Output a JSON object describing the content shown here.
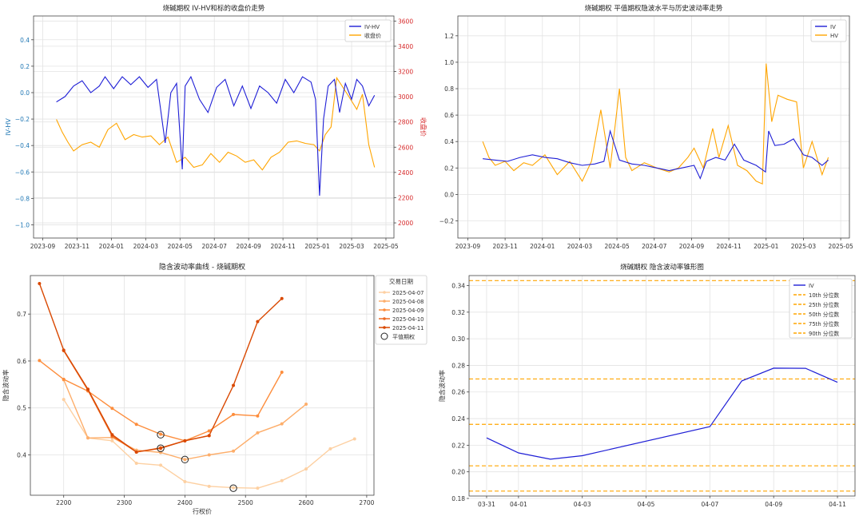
{
  "chart_data": [
    {
      "type": "line",
      "title": "烧碱期权 IV-HV和标的收盘价走势",
      "ylabel": "IV-HV",
      "y2label": "收盘价",
      "x_ticks": [
        "2023-09",
        "2023-11",
        "2024-01",
        "2024-03",
        "2024-05",
        "2024-07",
        "2024-09",
        "2024-11",
        "2025-01",
        "2025-03",
        "2025-05"
      ],
      "ylim": [
        -1.1,
        0.58
      ],
      "y_ticks": [
        -1.0,
        -0.8,
        -0.6,
        -0.4,
        -0.2,
        0.0,
        0.2,
        0.4
      ],
      "y_tick_labels": [
        "−1.0",
        "−0.8",
        "−0.6",
        "−0.4",
        "−0.2",
        "0.0",
        "0.2",
        "0.4"
      ],
      "y2lim": [
        1880,
        3640
      ],
      "y2_ticks": [
        2000,
        2200,
        2400,
        2600,
        2800,
        3000,
        3200,
        3400,
        3600
      ],
      "legend_position": "top-right",
      "colors": {
        "iv_hv": "#1f1fd6",
        "close": "#ffa500",
        "left_axis": "#1f77b4",
        "right_axis": "#d62728"
      },
      "series": [
        {
          "name": "IV-HV",
          "axis": "left",
          "color": "#1f1fd6",
          "x": [
            "2023-09-25",
            "2023-10-10",
            "2023-10-25",
            "2023-11-10",
            "2023-11-25",
            "2023-12-10",
            "2023-12-20",
            "2024-01-05",
            "2024-01-20",
            "2024-02-05",
            "2024-02-20",
            "2024-03-05",
            "2024-03-20",
            "2024-04-05",
            "2024-04-15",
            "2024-04-25",
            "2024-05-05",
            "2024-05-10",
            "2024-05-20",
            "2024-06-05",
            "2024-06-20",
            "2024-07-05",
            "2024-07-20",
            "2024-08-05",
            "2024-08-20",
            "2024-09-05",
            "2024-09-20",
            "2024-10-05",
            "2024-10-20",
            "2024-11-05",
            "2024-11-20",
            "2024-12-05",
            "2024-12-20",
            "2024-12-28",
            "2025-01-05",
            "2025-01-12",
            "2025-01-20",
            "2025-02-01",
            "2025-02-10",
            "2025-02-20",
            "2025-03-01",
            "2025-03-10",
            "2025-03-20",
            "2025-04-01",
            "2025-04-11"
          ],
          "values": [
            -0.07,
            -0.03,
            0.05,
            0.09,
            0.0,
            0.05,
            0.12,
            0.03,
            0.12,
            0.06,
            0.12,
            0.04,
            0.1,
            -0.38,
            0.0,
            0.07,
            -0.58,
            0.05,
            0.12,
            -0.05,
            -0.15,
            0.04,
            0.1,
            -0.1,
            0.05,
            -0.12,
            0.05,
            0.0,
            -0.08,
            0.1,
            0.0,
            0.12,
            0.08,
            -0.05,
            -0.78,
            -0.2,
            0.05,
            0.1,
            -0.15,
            0.07,
            -0.05,
            0.1,
            0.05,
            -0.1,
            -0.02
          ]
        },
        {
          "name": "收盘价",
          "axis": "right",
          "color": "#ffa500",
          "x": [
            "2023-09-25",
            "2023-10-05",
            "2023-10-15",
            "2023-10-25",
            "2023-11-10",
            "2023-11-25",
            "2023-12-10",
            "2023-12-25",
            "2024-01-10",
            "2024-01-25",
            "2024-02-10",
            "2024-02-25",
            "2024-03-10",
            "2024-03-25",
            "2024-04-10",
            "2024-04-25",
            "2024-05-10",
            "2024-05-25",
            "2024-06-10",
            "2024-06-25",
            "2024-07-10",
            "2024-07-25",
            "2024-08-10",
            "2024-08-25",
            "2024-09-10",
            "2024-09-25",
            "2024-10-10",
            "2024-10-25",
            "2024-11-10",
            "2024-11-25",
            "2024-12-10",
            "2024-12-25",
            "2025-01-05",
            "2025-01-15",
            "2025-01-25",
            "2025-02-05",
            "2025-02-15",
            "2025-02-25",
            "2025-03-10",
            "2025-03-20",
            "2025-04-01",
            "2025-04-11"
          ],
          "values": [
            2820,
            2720,
            2640,
            2570,
            2620,
            2640,
            2600,
            2740,
            2790,
            2660,
            2700,
            2680,
            2690,
            2620,
            2680,
            2480,
            2520,
            2440,
            2460,
            2550,
            2480,
            2560,
            2530,
            2480,
            2500,
            2420,
            2520,
            2560,
            2640,
            2650,
            2630,
            2620,
            2570,
            2700,
            2760,
            3150,
            3080,
            3010,
            2900,
            3020,
            2620,
            2440
          ]
        }
      ]
    },
    {
      "type": "line",
      "title": "烧碱期权 平值期权隐波水平与历史波动率走势",
      "x_ticks": [
        "2023-09",
        "2023-11",
        "2024-01",
        "2024-03",
        "2024-05",
        "2024-07",
        "2024-09",
        "2024-11",
        "2025-01",
        "2025-03",
        "2025-05"
      ],
      "ylim": [
        -0.33,
        1.35
      ],
      "y_ticks": [
        -0.2,
        0.0,
        0.2,
        0.4,
        0.6,
        0.8,
        1.0,
        1.2
      ],
      "y_tick_labels": [
        "−0.2",
        "0.0",
        "0.2",
        "0.4",
        "0.6",
        "0.8",
        "1.0",
        "1.2"
      ],
      "legend_position": "top-right",
      "series": [
        {
          "name": "IV",
          "color": "#1f1fd6",
          "x": [
            "2023-09-25",
            "2023-10-15",
            "2023-11-05",
            "2023-11-25",
            "2023-12-15",
            "2024-01-05",
            "2024-01-25",
            "2024-02-15",
            "2024-03-05",
            "2024-03-25",
            "2024-04-10",
            "2024-04-20",
            "2024-05-05",
            "2024-05-25",
            "2024-06-15",
            "2024-07-05",
            "2024-07-25",
            "2024-08-15",
            "2024-09-05",
            "2024-09-15",
            "2024-09-25",
            "2024-10-10",
            "2024-10-25",
            "2024-11-10",
            "2024-11-25",
            "2024-12-15",
            "2024-12-30",
            "2025-01-05",
            "2025-01-15",
            "2025-01-30",
            "2025-02-15",
            "2025-03-01",
            "2025-03-15",
            "2025-04-01",
            "2025-04-11"
          ],
          "values": [
            0.27,
            0.26,
            0.25,
            0.28,
            0.3,
            0.28,
            0.27,
            0.24,
            0.22,
            0.23,
            0.25,
            0.48,
            0.26,
            0.23,
            0.22,
            0.2,
            0.18,
            0.2,
            0.22,
            0.12,
            0.25,
            0.28,
            0.26,
            0.38,
            0.26,
            0.22,
            0.17,
            0.48,
            0.37,
            0.38,
            0.42,
            0.3,
            0.28,
            0.22,
            0.26
          ]
        },
        {
          "name": "HV",
          "color": "#ffa500",
          "x": [
            "2023-09-25",
            "2023-10-05",
            "2023-10-15",
            "2023-11-01",
            "2023-11-15",
            "2023-12-01",
            "2023-12-15",
            "2024-01-05",
            "2024-01-25",
            "2024-02-15",
            "2024-03-05",
            "2024-03-20",
            "2024-04-05",
            "2024-04-20",
            "2024-05-05",
            "2024-05-15",
            "2024-05-25",
            "2024-06-15",
            "2024-07-05",
            "2024-07-25",
            "2024-08-10",
            "2024-08-25",
            "2024-09-05",
            "2024-09-20",
            "2024-10-05",
            "2024-10-15",
            "2024-10-30",
            "2024-11-15",
            "2024-11-30",
            "2024-12-15",
            "2024-12-25",
            "2025-01-01",
            "2025-01-10",
            "2025-01-20",
            "2025-02-05",
            "2025-02-20",
            "2025-03-01",
            "2025-03-15",
            "2025-04-01",
            "2025-04-11"
          ],
          "values": [
            0.4,
            0.28,
            0.22,
            0.25,
            0.18,
            0.24,
            0.22,
            0.3,
            0.15,
            0.25,
            0.1,
            0.25,
            0.64,
            0.2,
            0.8,
            0.28,
            0.18,
            0.24,
            0.2,
            0.17,
            0.2,
            0.28,
            0.35,
            0.2,
            0.5,
            0.28,
            0.52,
            0.22,
            0.18,
            0.1,
            0.08,
            0.99,
            0.55,
            0.75,
            0.72,
            0.7,
            0.2,
            0.4,
            0.15,
            0.28
          ]
        }
      ]
    },
    {
      "type": "line",
      "title": "隐含波动率曲线 - 烧碱期权",
      "xlabel": "行权价",
      "ylabel": "隐含波动率",
      "xlim": [
        2145,
        2712
      ],
      "x_ticks": [
        2200,
        2300,
        2400,
        2500,
        2600,
        2700
      ],
      "ylim": [
        0.314,
        0.782
      ],
      "y_ticks": [
        0.4,
        0.5,
        0.6,
        0.7
      ],
      "legend_title": "交易日期",
      "legend_position": "outside-right",
      "atm_label": "平值期权",
      "series": [
        {
          "name": "2025-04-07",
          "color": "#fdd0a2",
          "x": [
            2200,
            2240,
            2280,
            2320,
            2360,
            2400,
            2440,
            2480,
            2520,
            2560,
            2600,
            2640,
            2680
          ],
          "values": [
            0.518,
            0.436,
            0.43,
            0.382,
            0.378,
            0.343,
            0.333,
            0.33,
            0.329,
            0.345,
            0.37,
            0.413,
            0.434
          ]
        },
        {
          "name": "2025-04-08",
          "color": "#fdae6b",
          "x": [
            2200,
            2240,
            2280,
            2320,
            2360,
            2400,
            2440,
            2480,
            2520,
            2560,
            2600
          ],
          "values": [
            0.56,
            0.436,
            0.437,
            0.41,
            0.405,
            0.39,
            0.4,
            0.408,
            0.447,
            0.466,
            0.508
          ]
        },
        {
          "name": "2025-04-09",
          "color": "#fd8d3c",
          "x": [
            2160,
            2200,
            2240,
            2280,
            2320,
            2360,
            2400,
            2440,
            2480,
            2520,
            2560
          ],
          "values": [
            0.601,
            0.561,
            0.536,
            0.499,
            0.465,
            0.444,
            0.43,
            0.451,
            0.486,
            0.483,
            0.576
          ]
        },
        {
          "name": "2025-04-10",
          "color": "#ee6a22",
          "x": [
            2200,
            2240,
            2280,
            2320,
            2360,
            2400,
            2440
          ],
          "values": [
            0.622,
            0.538,
            0.44,
            0.406,
            0.415,
            0.43,
            0.441
          ]
        },
        {
          "name": "2025-04-11",
          "color": "#d94801",
          "x": [
            2160,
            2200,
            2240,
            2280,
            2320,
            2360,
            2400,
            2440,
            2480,
            2520,
            2560
          ],
          "values": [
            0.765,
            0.623,
            0.54,
            0.443,
            0.406,
            0.414,
            0.43,
            0.441,
            0.548,
            0.684,
            0.733
          ]
        }
      ],
      "atm_points": [
        {
          "x": 2360,
          "y": 0.443
        },
        {
          "x": 2360,
          "y": 0.414
        },
        {
          "x": 2400,
          "y": 0.39
        },
        {
          "x": 2480,
          "y": 0.329
        }
      ]
    },
    {
      "type": "line",
      "title": "烧碱期权 隐含波动率锥形图",
      "ylabel": "隐含波动率",
      "x": [
        "03-31",
        "04-01",
        "04-02",
        "04-03",
        "04-04",
        "04-05",
        "04-06",
        "04-07",
        "04-08",
        "04-09",
        "04-10",
        "04-11"
      ],
      "x_ticks": [
        "03-31",
        "04-01",
        "04-03",
        "04-05",
        "04-07",
        "04-09",
        "04-11"
      ],
      "ylim": [
        0.1818,
        0.3475
      ],
      "y_ticks": [
        0.18,
        0.2,
        0.22,
        0.24,
        0.26,
        0.28,
        0.3,
        0.32,
        0.34
      ],
      "legend_position": "top-right",
      "series": [
        {
          "name": "IV",
          "color": "#1f1fd6",
          "x": [
            "03-31",
            "04-01",
            "04-02",
            "04-03",
            "04-07",
            "04-08",
            "04-09",
            "04-10",
            "04-11"
          ],
          "values": [
            0.2255,
            0.2142,
            0.2095,
            0.2121,
            0.234,
            0.2683,
            0.2779,
            0.2778,
            0.2673
          ]
        }
      ],
      "percentiles": [
        {
          "name": "10th 分位数",
          "value": 0.1855
        },
        {
          "name": "25th 分位数",
          "value": 0.2045
        },
        {
          "name": "50th 分位数",
          "value": 0.2357
        },
        {
          "name": "75th 分位数",
          "value": 0.2698
        },
        {
          "name": "90th 分位数",
          "value": 0.3437
        }
      ],
      "percentile_color": "#ffa500"
    }
  ]
}
